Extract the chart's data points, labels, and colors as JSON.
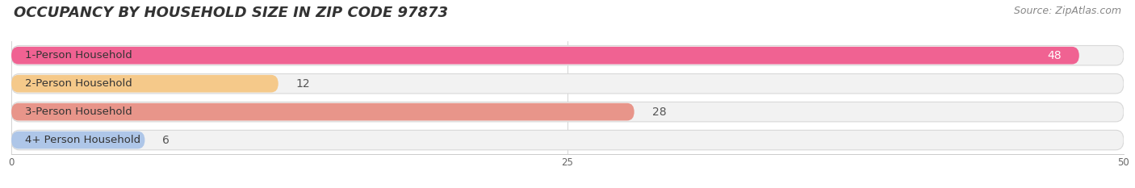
{
  "title": "OCCUPANCY BY HOUSEHOLD SIZE IN ZIP CODE 97873",
  "source": "Source: ZipAtlas.com",
  "categories": [
    "1-Person Household",
    "2-Person Household",
    "3-Person Household",
    "4+ Person Household"
  ],
  "values": [
    48,
    12,
    28,
    6
  ],
  "bar_colors": [
    "#f06292",
    "#f5c98a",
    "#e8958a",
    "#aec6e8"
  ],
  "label_colors": [
    "#ffffff",
    "#555555",
    "#555555",
    "#555555"
  ],
  "xlim": [
    0,
    50
  ],
  "xticks": [
    0,
    25,
    50
  ],
  "title_fontsize": 13,
  "source_fontsize": 9,
  "bar_label_fontsize": 10,
  "category_fontsize": 9.5,
  "figsize": [
    14.06,
    2.33
  ],
  "dpi": 100,
  "bg_color": "#ffffff",
  "bar_height": 0.62,
  "row_bg_color": "#f2f2f2",
  "track_color": "#e8e8e8"
}
